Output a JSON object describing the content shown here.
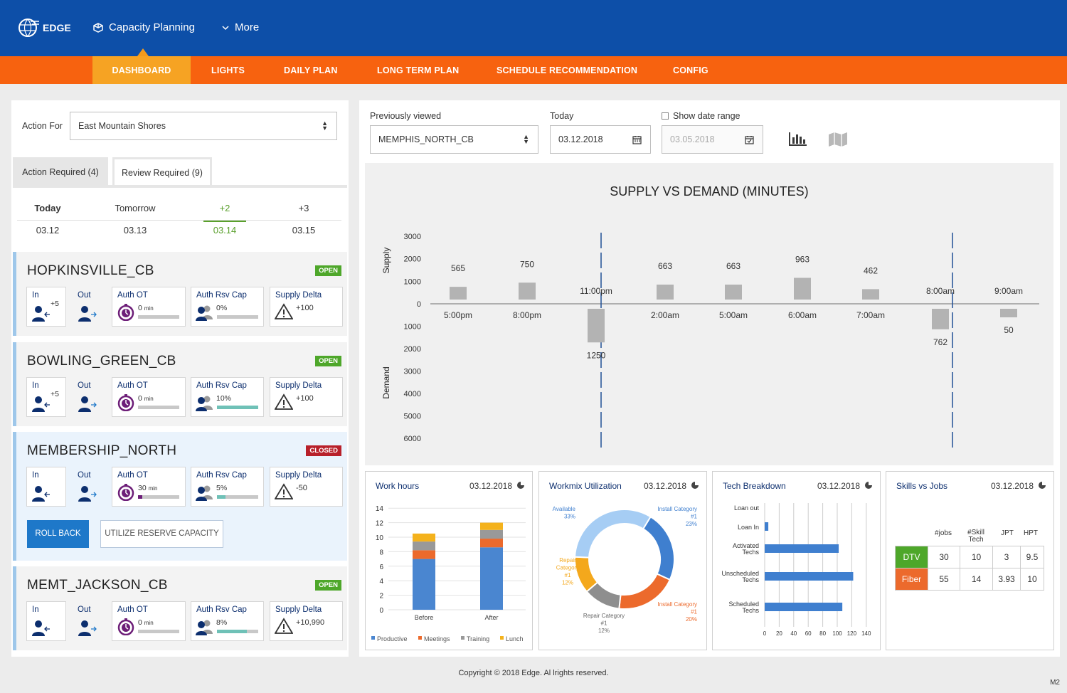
{
  "header": {
    "logo_text": "EDGE",
    "app_title": "Capacity Planning",
    "more_label": "More"
  },
  "nav": {
    "items": [
      "DASHBOARD",
      "LIGHTS",
      "DAILY PLAN",
      "LONG TERM PLAN",
      "SCHEDULE RECOMMENDATION",
      "CONFIG"
    ],
    "active": "DASHBOARD"
  },
  "left_panel": {
    "action_for_label": "Action For",
    "action_for_value": "East Mountain Shores",
    "tabs": [
      "Action Required (4)",
      "Review Required (9)"
    ],
    "days": [
      {
        "label": "Today",
        "date": "03.12"
      },
      {
        "label": "Tomorrow",
        "date": "03.13"
      },
      {
        "label": "+2",
        "date": "03.14"
      },
      {
        "label": "+3",
        "date": "03.15"
      }
    ],
    "metric_labels": {
      "in": "In",
      "out": "Out",
      "auth_ot": "Auth OT",
      "auth_rsv": "Auth Rsv Cap",
      "supply_delta": "Supply Delta"
    },
    "sites": [
      {
        "name": "HOPKINSVILLE_CB",
        "status": "OPEN",
        "in_value": "+5",
        "auth_ot": "0",
        "auth_ot_unit": "min",
        "auth_ot_fill": 0,
        "auth_rsv": "0%",
        "auth_rsv_fill": 0,
        "supply_delta": "+100"
      },
      {
        "name": "BOWLING_GREEN_CB",
        "status": "OPEN",
        "in_value": "+5",
        "auth_ot": "0",
        "auth_ot_unit": "min",
        "auth_ot_fill": 0,
        "auth_rsv": "10%",
        "auth_rsv_fill": 1.0,
        "supply_delta": "+100"
      },
      {
        "name": "MEMBERSHIP_NORTH",
        "status": "CLOSED",
        "in_value": "",
        "auth_ot": "30",
        "auth_ot_unit": "min",
        "auth_ot_fill": 0.1,
        "auth_rsv": "5%",
        "auth_rsv_fill": 0.2,
        "supply_delta": "-50"
      },
      {
        "name": "MEMT_JACKSON_CB",
        "status": "OPEN",
        "in_value": "",
        "auth_ot": "0",
        "auth_ot_unit": "min",
        "auth_ot_fill": 0,
        "auth_rsv": "8%",
        "auth_rsv_fill": 0.72,
        "supply_delta": "+10,990"
      }
    ],
    "buttons": {
      "roll_back": "ROLL BACK",
      "utilize": "UTILIZE RESERVE CAPACITY"
    }
  },
  "filters": {
    "previously_viewed_label": "Previously viewed",
    "previously_viewed_value": "MEMPHIS_NORTH_CB",
    "today_label": "Today",
    "today_value": "03.12.2018",
    "show_range_label": "Show date range",
    "range_value": "03.05.2018"
  },
  "chart_data": [
    {
      "type": "bar",
      "title": "SUPPLY VS DEMAND (MINUTES)",
      "ylabel_top": "Supply",
      "ylabel_bottom": "Demand",
      "supply_ticks": [
        "3000",
        "2000",
        "1000",
        "0"
      ],
      "demand_ticks": [
        "1000",
        "2000",
        "3000",
        "4000",
        "5000",
        "6000"
      ],
      "supply": [
        {
          "time": "5:00pm",
          "value": 565
        },
        {
          "time": "8:00pm",
          "value": 750
        },
        {
          "time": "2:00am",
          "value": 663
        },
        {
          "time": "5:00am",
          "value": 663
        },
        {
          "time": "6:00am",
          "value": 963
        },
        {
          "time": "7:00am",
          "value": 462
        }
      ],
      "demand": [
        {
          "time": "11:00pm",
          "value": 1250
        },
        {
          "time": "8:00am",
          "value": 762
        },
        {
          "time": "9:00am",
          "value": 50
        }
      ]
    },
    {
      "type": "bar",
      "title": "Work hours",
      "date": "03.12.2018",
      "categories": [
        "Before",
        "After"
      ],
      "yticks": [
        "14",
        "12",
        "10",
        "8",
        "6",
        "4",
        "2",
        "0"
      ],
      "series": [
        {
          "name": "Productive",
          "color": "#4a86d0",
          "values": [
            7,
            8.6
          ]
        },
        {
          "name": "Meetings",
          "color": "#ec6a2c",
          "values": [
            1.2,
            1.2
          ]
        },
        {
          "name": "Training",
          "color": "#999999",
          "values": [
            1.2,
            1.2
          ]
        },
        {
          "name": "Lunch",
          "color": "#f4b21c",
          "values": [
            1.1,
            1.0
          ]
        }
      ]
    },
    {
      "type": "pie",
      "title": "Workmix Utilization",
      "date": "03.12.2018",
      "slices": [
        {
          "name": "Install Category #1",
          "value": 23,
          "color": "#3f7fcf",
          "label_lines": [
            "Install Category",
            "#1",
            "23%"
          ]
        },
        {
          "name": "Install Category #1",
          "value": 20,
          "color": "#ec6a2c",
          "label_lines": [
            "Install Category",
            "#1",
            "20%"
          ]
        },
        {
          "name": "Repair Category #1",
          "value": 12,
          "color": "#8e8e8e",
          "label_lines": [
            "Repair Category",
            "#1",
            "12%"
          ]
        },
        {
          "name": "Repair Category #1",
          "value": 12,
          "color": "#f4a81c",
          "label_lines": [
            "Repair",
            "Category",
            "#1",
            "12%"
          ]
        },
        {
          "name": "Available",
          "value": 33,
          "color": "#a6cdf4",
          "label_lines": [
            "Available",
            "33%"
          ]
        }
      ]
    },
    {
      "type": "bar",
      "title": "Tech Breakdown",
      "date": "03.12.2018",
      "categories": [
        {
          "lines": [
            "Loan out"
          ],
          "value": 0
        },
        {
          "lines": [
            "Loan In"
          ],
          "value": 5
        },
        {
          "lines": [
            "Activated",
            "Techs"
          ],
          "value": 102
        },
        {
          "lines": [
            "Unscheduled",
            "Techs"
          ],
          "value": 122
        },
        {
          "lines": [
            "Scheduled",
            "Techs"
          ],
          "value": 107
        }
      ],
      "xticks": [
        "0",
        "20",
        "40",
        "60",
        "80",
        "100",
        "120",
        "140"
      ]
    }
  ],
  "skills": {
    "title": "Skills vs Jobs",
    "date": "03.12.2018",
    "headers": [
      "#jobs",
      "#Skill Tech",
      "JPT",
      "HPT"
    ],
    "rows": [
      {
        "label": "DTV",
        "color": "#4ea72a",
        "values": [
          "30",
          "10",
          "3",
          "9.5"
        ]
      },
      {
        "label": "Fiber",
        "color": "#ec6a2c",
        "values": [
          "55",
          "14",
          "3.93",
          "10"
        ]
      }
    ]
  },
  "footer": {
    "copyright": "Copyright © 2018 Edge. Al lrights reserved.",
    "code": "M2"
  }
}
